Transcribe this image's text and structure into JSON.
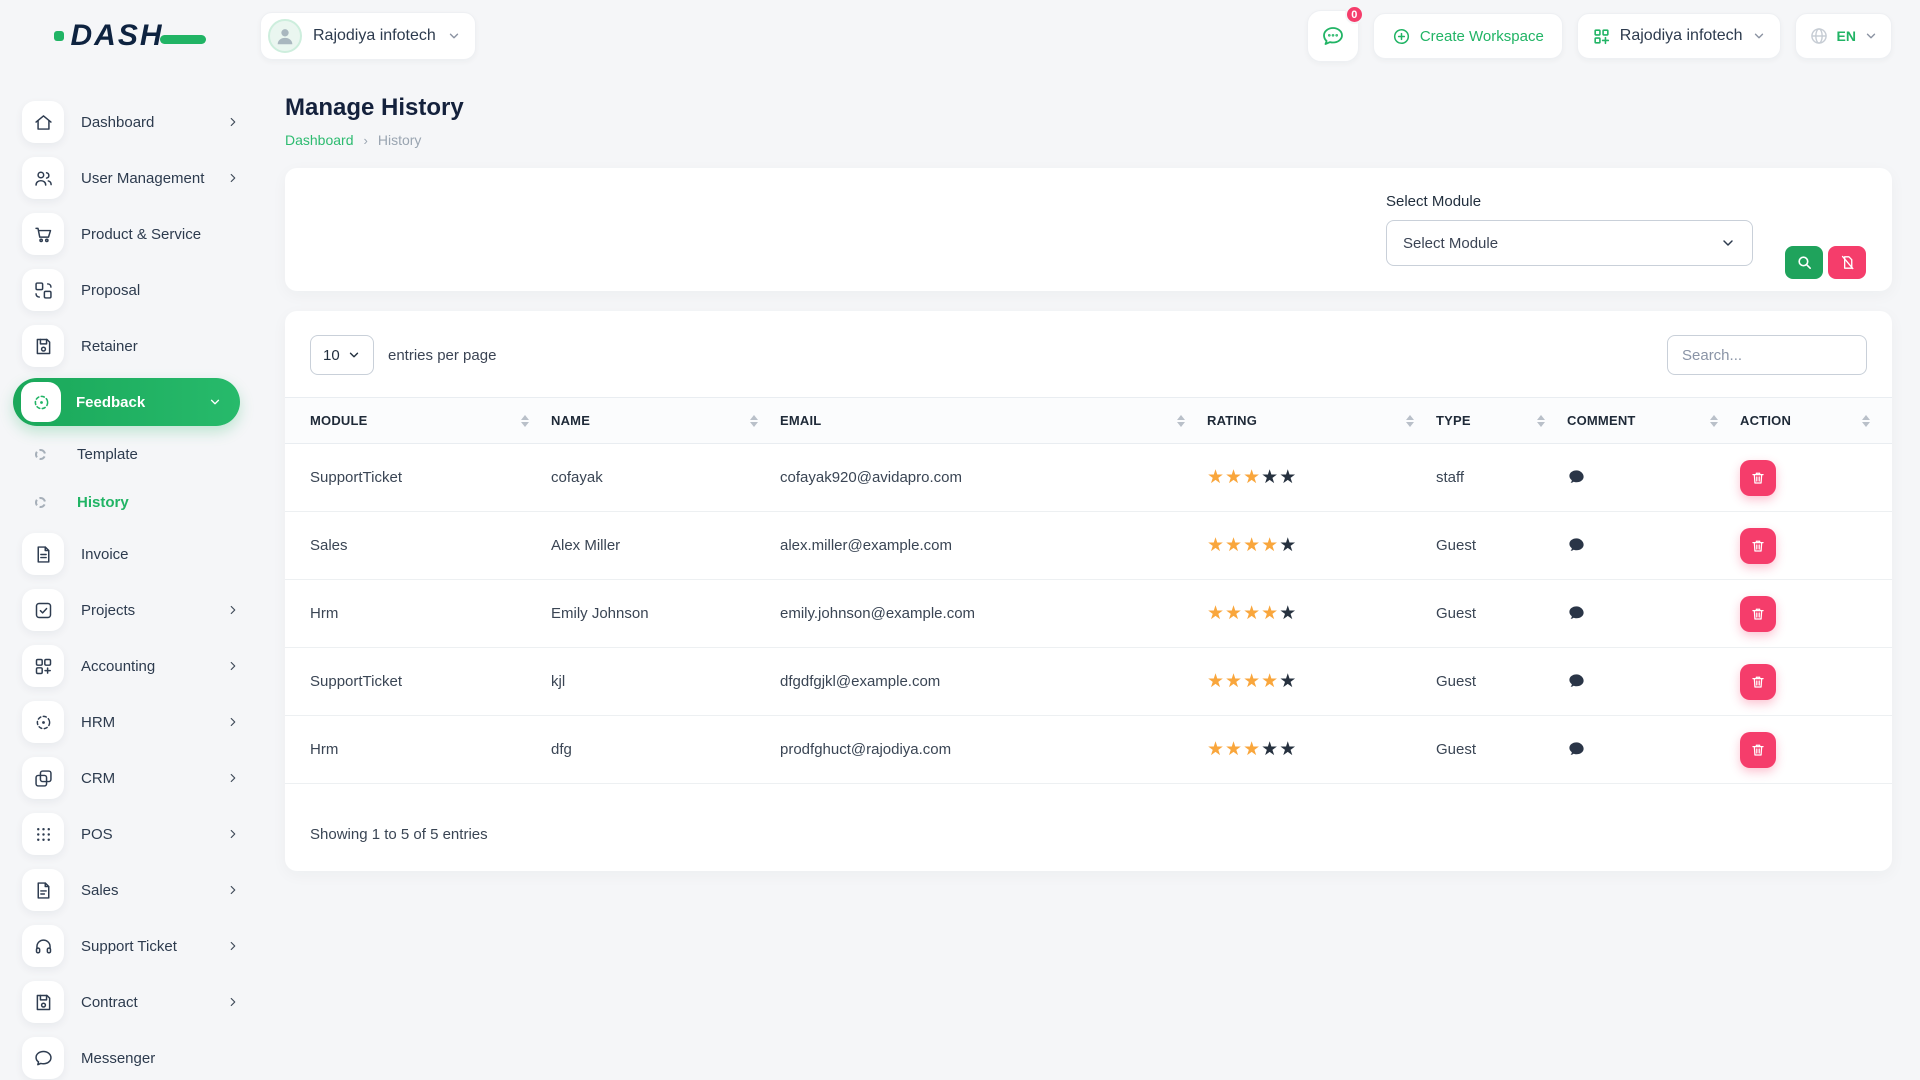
{
  "brand": {
    "name": "DASH"
  },
  "header": {
    "workspace": "Rajodiya infotech",
    "messages_badge": "0",
    "create_workspace": "Create Workspace",
    "company": "Rajodiya infotech",
    "language": "EN"
  },
  "sidebar": {
    "items_top": [
      {
        "label": "Dashboard",
        "icon": "home-icon",
        "expandable": true
      },
      {
        "label": "User Management",
        "icon": "users-icon",
        "expandable": true
      },
      {
        "label": "Product & Service",
        "icon": "cart-icon",
        "expandable": false
      },
      {
        "label": "Proposal",
        "icon": "proposal-icon",
        "expandable": false
      },
      {
        "label": "Retainer",
        "icon": "save-icon",
        "expandable": false
      },
      {
        "label": "Feedback",
        "icon": "feedback-icon",
        "expandable": true,
        "active": true,
        "expanded": true
      }
    ],
    "feedback_children": [
      {
        "label": "Template",
        "active": false
      },
      {
        "label": "History",
        "active": true
      }
    ],
    "items_bottom": [
      {
        "label": "Invoice",
        "icon": "invoice-icon",
        "expandable": false
      },
      {
        "label": "Projects",
        "icon": "projects-icon",
        "expandable": true
      },
      {
        "label": "Accounting",
        "icon": "grid-plus-icon",
        "expandable": true
      },
      {
        "label": "HRM",
        "icon": "target-icon",
        "expandable": true
      },
      {
        "label": "CRM",
        "icon": "cards-icon",
        "expandable": true
      },
      {
        "label": "POS",
        "icon": "dots-grid-icon",
        "expandable": true
      },
      {
        "label": "Sales",
        "icon": "file-icon",
        "expandable": true
      },
      {
        "label": "Support Ticket",
        "icon": "headset-icon",
        "expandable": true
      },
      {
        "label": "Contract",
        "icon": "save-icon",
        "expandable": true
      },
      {
        "label": "Messenger",
        "icon": "chat-icon",
        "expandable": false
      }
    ]
  },
  "page": {
    "title": "Manage History",
    "breadcrumb_home": "Dashboard",
    "breadcrumb_current": "History"
  },
  "filter": {
    "label": "Select Module",
    "value": "Select Module"
  },
  "table": {
    "page_size": "10",
    "entries_label": "entries per page",
    "search_placeholder": "Search...",
    "columns": [
      "MODULE",
      "NAME",
      "EMAIL",
      "RATING",
      "TYPE",
      "COMMENT",
      "ACTION"
    ],
    "rows": [
      {
        "module": "SupportTicket",
        "name": "cofayak",
        "email": "cofayak920@avidapro.com",
        "rating": 3,
        "type": "staff"
      },
      {
        "module": "Sales",
        "name": "Alex Miller",
        "email": "alex.miller@example.com",
        "rating": 4,
        "type": "Guest"
      },
      {
        "module": "Hrm",
        "name": "Emily Johnson",
        "email": "emily.johnson@example.com",
        "rating": 4,
        "type": "Guest"
      },
      {
        "module": "SupportTicket",
        "name": "kjl",
        "email": "dfgdfgjkl@example.com",
        "rating": 4,
        "type": "Guest"
      },
      {
        "module": "Hrm",
        "name": "dfg",
        "email": "prodfghuct@rajodiya.com",
        "rating": 3,
        "type": "Guest"
      }
    ],
    "footer": "Showing 1 to 5 of 5 entries"
  },
  "colors": {
    "accent_green": "#21b465",
    "accent_pink": "#f53d6b",
    "star_orange": "#f9a63c",
    "star_dark": "#26313f",
    "navy": "#14213c"
  }
}
